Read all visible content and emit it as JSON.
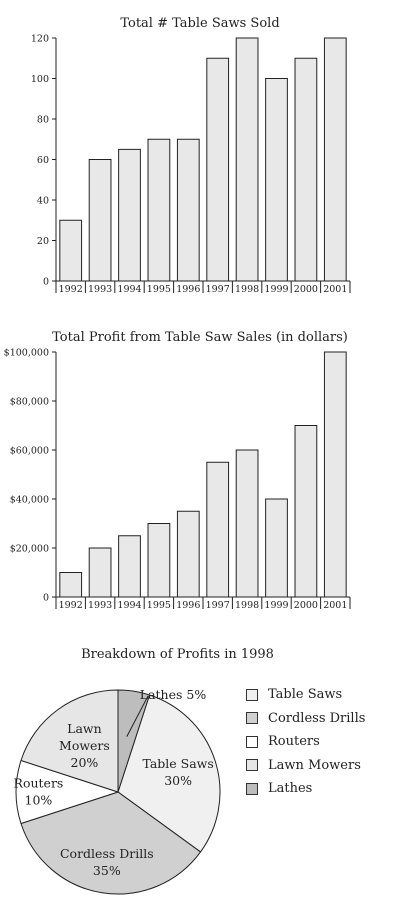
{
  "chart_data": [
    {
      "type": "bar",
      "title": "Total # Table Saws Sold",
      "categories": [
        "1992",
        "1993",
        "1994",
        "1995",
        "1996",
        "1997",
        "1998",
        "1999",
        "2000",
        "2001"
      ],
      "values": [
        30,
        60,
        65,
        70,
        70,
        110,
        120,
        100,
        110,
        120
      ],
      "ylim": [
        0,
        120
      ],
      "yticks": [
        0,
        20,
        40,
        60,
        80,
        100,
        120
      ],
      "ytick_labels": [
        "0",
        "20",
        "40",
        "60",
        "80",
        "100",
        "120"
      ],
      "bar_color": "#e8e8e8"
    },
    {
      "type": "bar",
      "title": "Total Profit from Table Saw Sales (in dollars)",
      "categories": [
        "1992",
        "1993",
        "1994",
        "1995",
        "1996",
        "1997",
        "1998",
        "1999",
        "2000",
        "2001"
      ],
      "values": [
        10000,
        20000,
        25000,
        30000,
        35000,
        55000,
        60000,
        40000,
        70000,
        100000
      ],
      "ylim": [
        0,
        100000
      ],
      "yticks": [
        0,
        20000,
        40000,
        60000,
        80000,
        100000
      ],
      "ytick_labels": [
        "0",
        "$20,000",
        "$40,000",
        "$60,000",
        "$80,000",
        "$100,000"
      ],
      "bar_color": "#e8e8e8"
    },
    {
      "type": "pie",
      "title": "Breakdown of Profits in 1998",
      "slices": [
        {
          "name": "Table Saws",
          "value": 30,
          "label_lines": [
            "Table Saws",
            "30%"
          ],
          "color": "#f0f0f0"
        },
        {
          "name": "Cordless Drills",
          "value": 35,
          "label_lines": [
            "Cordless Drills",
            "35%"
          ],
          "color": "#d0d0d0"
        },
        {
          "name": "Routers",
          "value": 10,
          "label_lines": [
            "Routers",
            "10%"
          ],
          "color": "#ffffff"
        },
        {
          "name": "Lawn Mowers",
          "value": 20,
          "label_lines": [
            "Lawn",
            "Mowers",
            "20%"
          ],
          "color": "#e6e6e6"
        },
        {
          "name": "Lathes",
          "value": 5,
          "label_lines": [
            "Lathes 5%"
          ],
          "color": "#bdbdbd"
        }
      ],
      "legend": [
        "Table Saws",
        "Cordless Drills",
        "Routers",
        "Lawn Mowers",
        "Lathes"
      ]
    }
  ]
}
